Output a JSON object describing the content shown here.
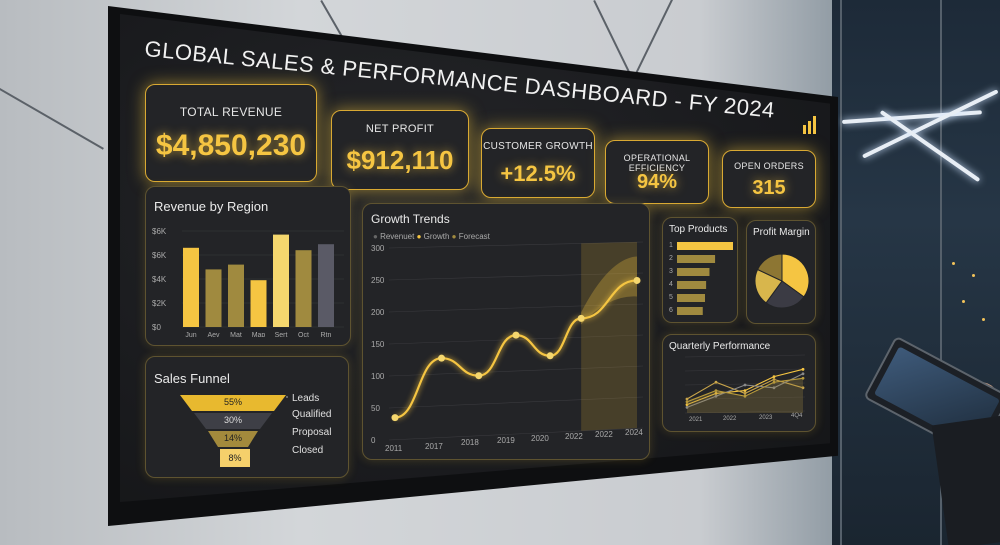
{
  "dashboard": {
    "title": "GLOBAL SALES & PERFORMANCE DASHBOARD - FY 2024",
    "logo_icon": "bar-chart-logo-icon"
  },
  "kpis": [
    {
      "label": "TOTAL REVENUE",
      "value": "$4,850,230"
    },
    {
      "label": "NET PROFIT",
      "value": "$912,110"
    },
    {
      "label": "CUSTOMER GROWTH",
      "value": "+12.5%"
    },
    {
      "label": "OPERATIONAL EFFICIENCY",
      "value": "94%"
    },
    {
      "label": "OPEN ORDERS",
      "value": "315"
    }
  ],
  "colors": {
    "accent": "#f5c542",
    "panel": "#232427",
    "bar_dark": "#5a5a66",
    "bar_muted": "#a08a3f"
  },
  "revenue_by_region": {
    "title": "Revenue by Region",
    "y_ticks": [
      "$6K",
      "$6K",
      "$4K",
      "$2K",
      "$0"
    ],
    "categories": [
      "Jun",
      "Aev",
      "Mat",
      "Map",
      "Sert",
      "Oct",
      "Rtn"
    ]
  },
  "sales_funnel": {
    "title": "Sales Funnel",
    "stages": [
      {
        "label": "Leads",
        "pct": "55%"
      },
      {
        "label": "Qualified",
        "pct": "30%"
      },
      {
        "label": "Proposal",
        "pct": "14%"
      },
      {
        "label": "Closed",
        "pct": "8%"
      }
    ]
  },
  "growth_trends": {
    "title": "Growth Trends",
    "legend": [
      "Revenuet",
      "Growth",
      "Forecast"
    ],
    "y_ticks": [
      "300",
      "250",
      "200",
      "150",
      "100",
      "50",
      "0"
    ],
    "x_ticks": [
      "2011",
      "2017",
      "2018",
      "2019",
      "2020",
      "2022",
      "2022",
      "2024"
    ]
  },
  "top_products": {
    "title": "Top Products",
    "ranks": [
      "1",
      "2",
      "3",
      "4",
      "5",
      "6"
    ]
  },
  "profit_margin": {
    "title": "Profit Margin"
  },
  "quarterly_performance": {
    "title": "Quarterly Performance",
    "x_ticks": [
      "2021",
      "2022",
      "2023",
      "4Q4"
    ]
  },
  "chart_data": [
    {
      "type": "bar",
      "title": "Revenue by Region",
      "categories": [
        "Jun",
        "Aev",
        "Mat",
        "Map",
        "Sert",
        "Oct",
        "Rtn"
      ],
      "values": [
        6.6,
        4.8,
        5.2,
        3.9,
        7.7,
        6.4,
        6.9
      ],
      "colors": [
        "#f5c542",
        "#a08a3f",
        "#a08a3f",
        "#f5c542",
        "#f5d76e",
        "#a08a3f",
        "#5a5a66"
      ],
      "ylim": [
        0,
        8
      ]
    },
    {
      "type": "line",
      "title": "Growth Trends",
      "series": [
        {
          "name": "Growth",
          "x": [
            2011,
            2012.5,
            2013.7,
            2014.9,
            2016,
            2017,
            2018.8
          ],
          "y": [
            35,
            125,
            95,
            157,
            122,
            180,
            238
          ]
        }
      ],
      "forecast_band": {
        "x_start": 2017,
        "x_end": 2018.8
      },
      "ylim": [
        0,
        300
      ]
    },
    {
      "type": "bar",
      "title": "Top Products",
      "categories": [
        "1",
        "2",
        "3",
        "4",
        "5",
        "6"
      ],
      "values": [
        100,
        68,
        58,
        52,
        50,
        46
      ]
    },
    {
      "type": "pie",
      "title": "Profit Margin",
      "values": [
        35,
        25,
        22,
        18
      ],
      "colors": [
        "#f5c542",
        "#3b3b44",
        "#d8b64c",
        "#8d7633"
      ]
    },
    {
      "type": "line",
      "title": "Quarterly Performance",
      "x": [
        0,
        1,
        2,
        3,
        4
      ],
      "series": [
        {
          "values": [
            15,
            35,
            40,
            65,
            78
          ],
          "color": "#f5c542"
        },
        {
          "values": [
            25,
            55,
            35,
            60,
            45
          ],
          "color": "#c9a54a"
        },
        {
          "values": [
            10,
            30,
            50,
            45,
            70
          ],
          "color": "#8a8a8a"
        },
        {
          "values": [
            20,
            40,
            30,
            55,
            62
          ],
          "color": "#b89a3a"
        }
      ],
      "ylim": [
        0,
        100
      ]
    }
  ]
}
